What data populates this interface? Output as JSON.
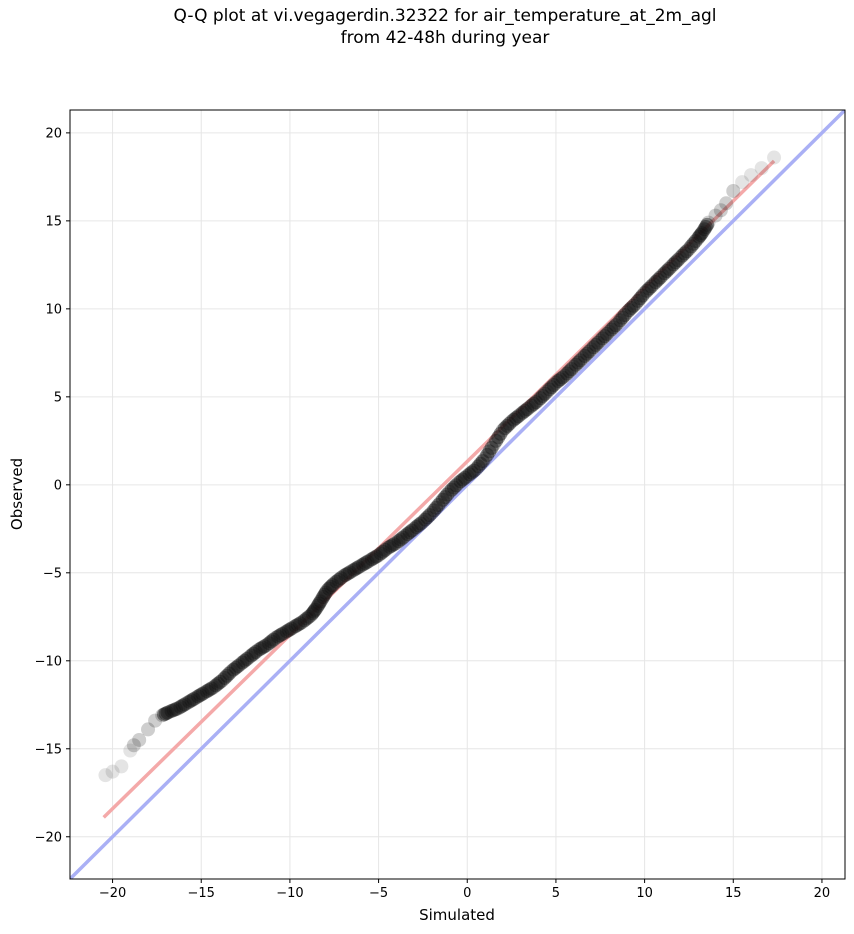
{
  "chart_data": {
    "type": "scatter",
    "title": "Q-Q plot at vi.vegagerdin.32322 for air_temperature_at_2m_agl",
    "subtitle": "from 42-48h during year",
    "xlabel": "Simulated",
    "ylabel": "Observed",
    "xlim": [
      -22.4,
      21.3
    ],
    "ylim": [
      -22.4,
      21.3
    ],
    "xticks": [
      -20,
      -15,
      -10,
      -5,
      0,
      5,
      10,
      15,
      20
    ],
    "yticks": [
      -20,
      -15,
      -10,
      -5,
      0,
      5,
      10,
      15,
      20
    ],
    "xtick_labels": [
      "−20",
      "−15",
      "−10",
      "−5",
      "0",
      "5",
      "10",
      "15",
      "20"
    ],
    "ytick_labels": [
      "−20",
      "−15",
      "−10",
      "−5",
      "0",
      "5",
      "10",
      "15",
      "20"
    ],
    "grid": true,
    "identity_line": {
      "x": [
        -22.4,
        21.3
      ],
      "y": [
        -22.4,
        21.3
      ],
      "color": "#aab0f5"
    },
    "fit_line": {
      "x": [
        -20.5,
        17.3
      ],
      "y": [
        -18.9,
        18.4
      ],
      "color": "#f4a9a9"
    },
    "quantiles": {
      "x": [
        -20.4,
        -20.0,
        -19.5,
        -19.0,
        -18.8,
        -18.5,
        -18.0,
        -17.6,
        -17.2,
        -16.8,
        -16.3,
        -15.8,
        -15.3,
        -14.8,
        -14.3,
        -13.8,
        -13.3,
        -12.8,
        -12.3,
        -11.8,
        -11.3,
        -10.8,
        -10.3,
        -9.8,
        -9.3,
        -8.8,
        -8.5,
        -8.2,
        -7.9,
        -7.5,
        -7.0,
        -6.5,
        -6.0,
        -5.5,
        -5.0,
        -4.5,
        -4.0,
        -3.5,
        -3.0,
        -2.5,
        -2.0,
        -1.5,
        -1.0,
        -0.5,
        0.0,
        0.5,
        1.0,
        1.5,
        2.0,
        2.5,
        3.0,
        3.5,
        4.0,
        4.5,
        5.0,
        5.5,
        6.0,
        6.5,
        7.0,
        7.5,
        8.0,
        8.5,
        9.0,
        9.5,
        10.0,
        10.5,
        11.0,
        11.5,
        12.0,
        12.5,
        13.0,
        13.3,
        13.6,
        14.0,
        14.3,
        14.6,
        15.0,
        15.5,
        16.0,
        16.6,
        17.3
      ],
      "y": [
        -16.5,
        -16.3,
        -16.0,
        -15.1,
        -14.8,
        -14.5,
        -13.9,
        -13.4,
        -13.1,
        -12.9,
        -12.7,
        -12.4,
        -12.1,
        -11.8,
        -11.5,
        -11.1,
        -10.6,
        -10.2,
        -9.8,
        -9.4,
        -9.1,
        -8.7,
        -8.4,
        -8.1,
        -7.8,
        -7.4,
        -7.0,
        -6.5,
        -6.0,
        -5.6,
        -5.2,
        -4.9,
        -4.6,
        -4.3,
        -4.0,
        -3.6,
        -3.3,
        -2.9,
        -2.5,
        -2.1,
        -1.6,
        -1.0,
        -0.4,
        0.1,
        0.5,
        0.9,
        1.5,
        2.3,
        3.1,
        3.6,
        4.0,
        4.4,
        4.8,
        5.3,
        5.8,
        6.2,
        6.7,
        7.2,
        7.7,
        8.2,
        8.7,
        9.2,
        9.8,
        10.3,
        10.9,
        11.4,
        11.9,
        12.4,
        12.9,
        13.4,
        14.0,
        14.4,
        14.9,
        15.3,
        15.6,
        16.0,
        16.7,
        17.2,
        17.6,
        18.0,
        18.6
      ]
    }
  }
}
